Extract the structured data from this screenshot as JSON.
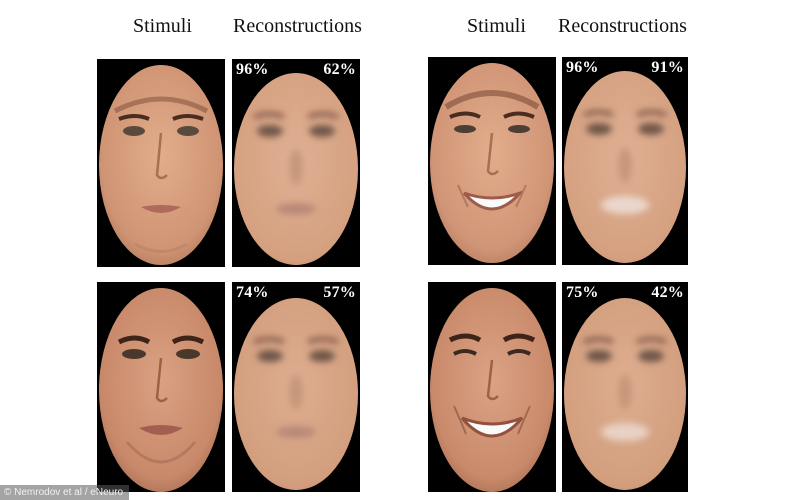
{
  "headers": {
    "left_stimuli": "Stimuli",
    "left_reconstructions": "Reconstructions",
    "right_stimuli": "Stimuli",
    "right_reconstructions": "Reconstructions"
  },
  "reconstructions": [
    {
      "left_percent": "96%",
      "right_percent": "62%"
    },
    {
      "left_percent": "96%",
      "right_percent": "91%"
    },
    {
      "left_percent": "74%",
      "right_percent": "57%"
    },
    {
      "left_percent": "75%",
      "right_percent": "42%"
    }
  ],
  "credit": "© Nemrodov et al / eNeuro",
  "colors": {
    "background": "#000000",
    "skin": "#d9a07e",
    "blur_skin": "#d8a887"
  }
}
